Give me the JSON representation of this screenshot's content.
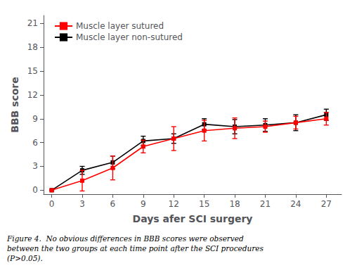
{
  "chart_data": {
    "type": "line",
    "xlabel": "Days afer SCI surgery",
    "ylabel": "BBB score",
    "x": [
      0,
      3,
      6,
      9,
      12,
      15,
      18,
      21,
      24,
      27
    ],
    "series": [
      {
        "name": "Muscle layer non-sutured",
        "color": "#000000",
        "marker": "square",
        "values": [
          0.0,
          2.5,
          3.5,
          6.2,
          6.5,
          8.3,
          8.0,
          8.2,
          8.5,
          9.5
        ],
        "errors": [
          0.0,
          0.5,
          0.8,
          0.6,
          0.6,
          0.7,
          0.9,
          0.8,
          1.0,
          0.7
        ]
      },
      {
        "name": "Muscle layer sutured",
        "color": "#FF0000",
        "marker": "square",
        "values": [
          0.0,
          1.2,
          2.8,
          5.5,
          6.5,
          7.5,
          7.8,
          8.0,
          8.5,
          9.0
        ],
        "errors": [
          0.0,
          1.3,
          1.5,
          0.8,
          1.5,
          1.3,
          1.3,
          0.7,
          0.8,
          0.8
        ]
      }
    ],
    "xlim": [
      -0.8,
      28.5
    ],
    "xticks": [
      0,
      3,
      6,
      9,
      12,
      15,
      18,
      21,
      24,
      27
    ],
    "ylim": [
      -0.5,
      22
    ],
    "yticks": [
      0,
      3,
      6,
      9,
      12,
      15,
      18,
      21
    ],
    "grid": false,
    "legend": "upper left",
    "annotations": [
      "Figure 4.  No obvious differences in BBB scores were observed\nbetween the two groups at each time point after the SCI procedures\n(P>0.05)."
    ]
  }
}
